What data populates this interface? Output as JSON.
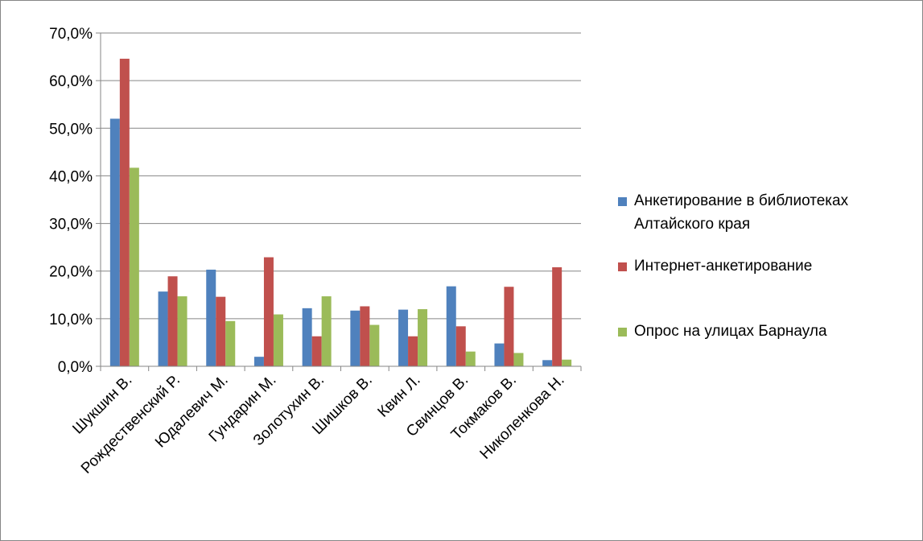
{
  "chart_data": {
    "type": "bar",
    "categories": [
      "Шукшин В.",
      "Рождественский Р.",
      "Юдалевич М.",
      "Гундарин М.",
      "Золотухин В.",
      "Шишков В.",
      "Квин Л.",
      "Свинцов В.",
      "Токмаков В.",
      "Николенкова Н."
    ],
    "series": [
      {
        "name": "Анкетирование в библиотеках Алтайского края",
        "color": "#4f81bd",
        "values": [
          52.0,
          15.7,
          20.3,
          2.0,
          12.2,
          11.7,
          11.9,
          16.8,
          4.8,
          1.3
        ]
      },
      {
        "name": "Интернет-анкетирование",
        "color": "#c0504d",
        "values": [
          64.6,
          18.9,
          14.6,
          22.9,
          6.3,
          12.6,
          6.3,
          8.4,
          16.7,
          20.8
        ]
      },
      {
        "name": "Опрос на улицах Барнаула",
        "color": "#9bbb59",
        "values": [
          41.7,
          14.7,
          9.5,
          10.9,
          14.7,
          8.7,
          12.0,
          3.1,
          2.8,
          1.4
        ]
      }
    ],
    "ylim": [
      0,
      70
    ],
    "yticks": [
      0,
      10,
      20,
      30,
      40,
      50,
      60,
      70
    ],
    "ytick_labels": [
      "0,0%",
      "10,0%",
      "20,0%",
      "30,0%",
      "40,0%",
      "50,0%",
      "60,0%",
      "70,0%"
    ],
    "grid": true,
    "legend_position": "right"
  }
}
